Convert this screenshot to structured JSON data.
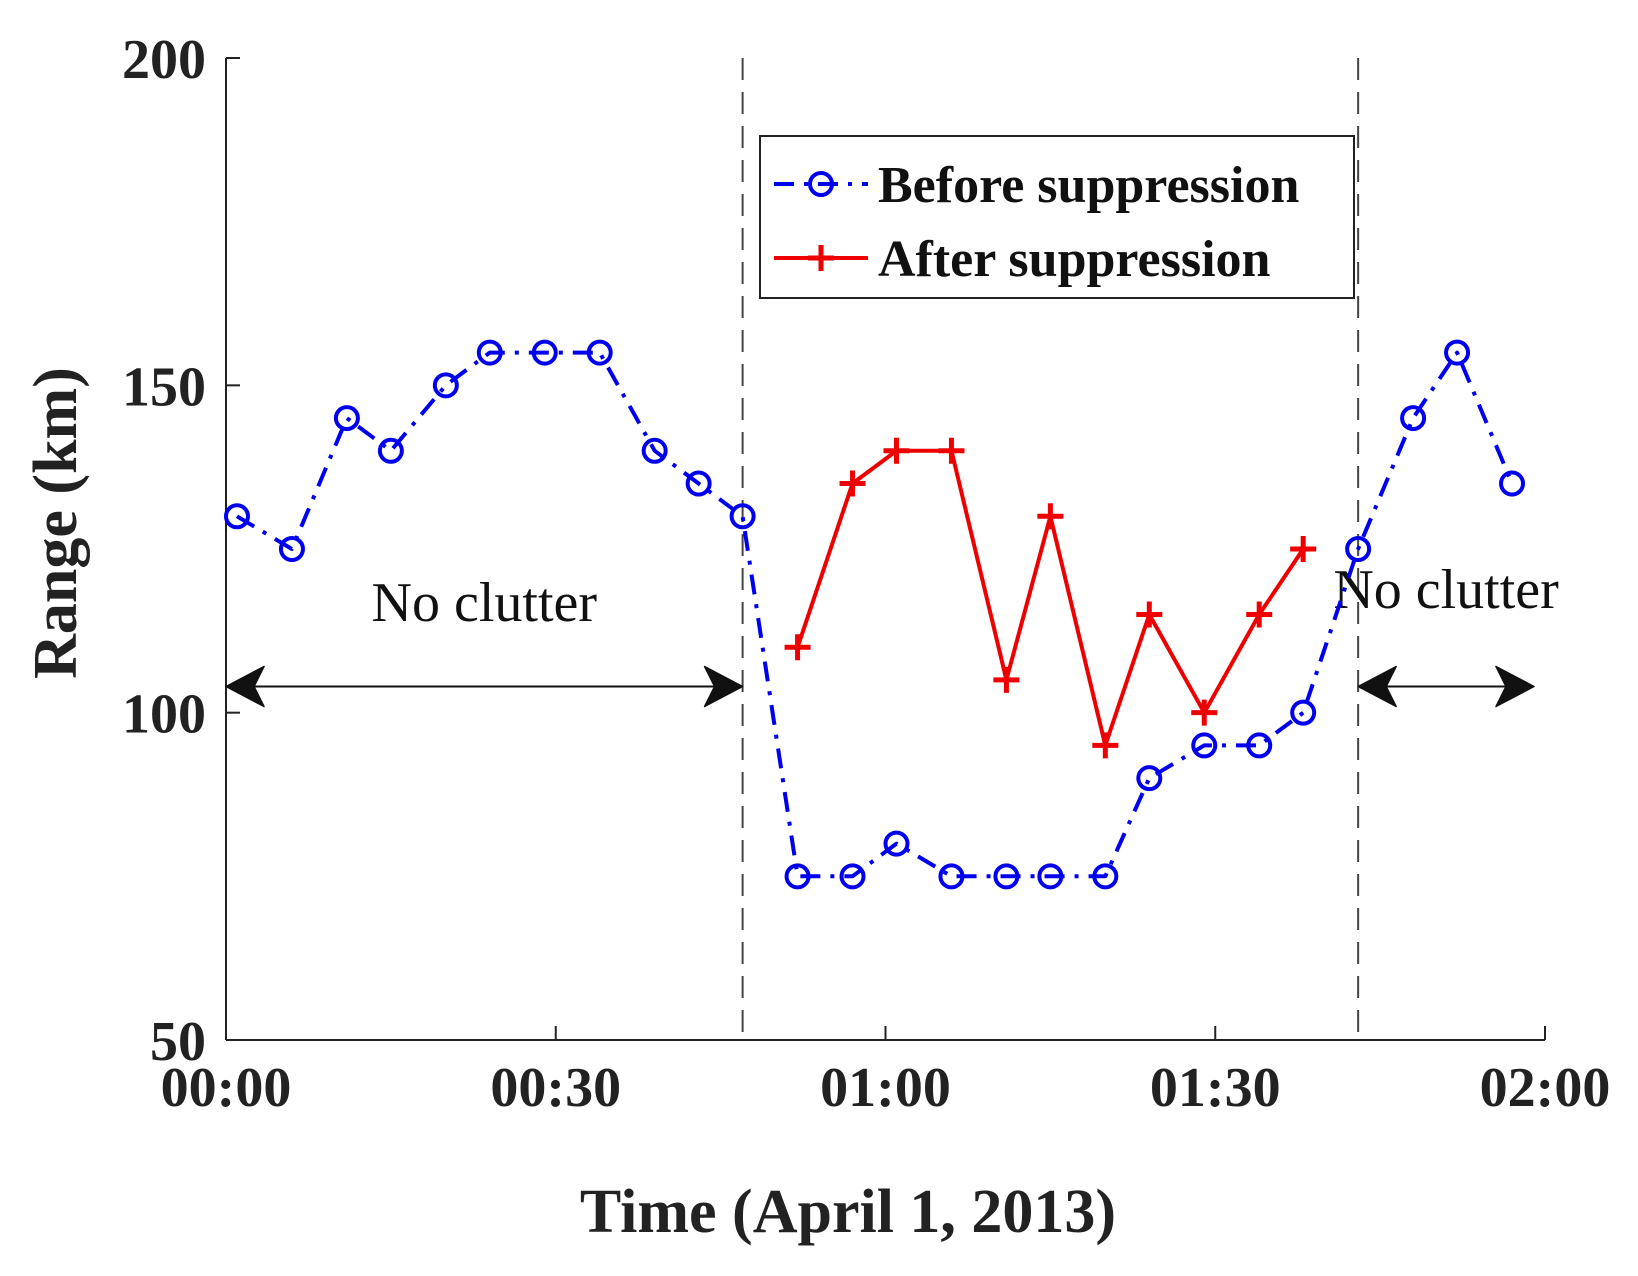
{
  "chart_data": {
    "type": "line",
    "title": "",
    "xlabel": "Time (April 1, 2013)",
    "ylabel": "Range (km)",
    "xlim": [
      "00:00",
      "02:00"
    ],
    "ylim": [
      50,
      200
    ],
    "x_ticks": [
      "00:00",
      "00:30",
      "01:00",
      "01:30",
      "02:00"
    ],
    "y_ticks": [
      "50",
      "100",
      "150",
      "200"
    ],
    "grid": false,
    "legend_position": "top-center",
    "series": [
      {
        "name": "Before suppression",
        "color": "#0000ee",
        "line_style": "dash-dot",
        "marker": "circle",
        "x": [
          "00:01",
          "00:06",
          "00:11",
          "00:15",
          "00:20",
          "00:24",
          "00:29",
          "00:34",
          "00:39",
          "00:43",
          "00:47",
          "00:52",
          "00:57",
          "01:01",
          "01:06",
          "01:11",
          "01:15",
          "01:20",
          "01:24",
          "01:29",
          "01:34",
          "01:38",
          "01:43",
          "01:48",
          "01:52",
          "01:57"
        ],
        "values": [
          130,
          125,
          145,
          140,
          150,
          155,
          155,
          155,
          140,
          135,
          130,
          75,
          75,
          80,
          75,
          75,
          75,
          75,
          90,
          95,
          95,
          100,
          125,
          145,
          155,
          135
        ]
      },
      {
        "name": "After suppression",
        "color": "#ee0000",
        "line_style": "solid",
        "marker": "plus",
        "x": [
          "00:52",
          "00:57",
          "01:01",
          "01:06",
          "01:11",
          "01:15",
          "01:20",
          "01:24",
          "01:29",
          "01:34",
          "01:38"
        ],
        "values": [
          110,
          135,
          140,
          140,
          105,
          130,
          95,
          115,
          100,
          115,
          125
        ]
      }
    ],
    "vertical_lines": [
      "00:47",
      "01:43"
    ],
    "annotations": [
      {
        "text": "No clutter",
        "arrow_from": "00:00",
        "arrow_to": "00:47",
        "arrow_y": 104,
        "text_y": 114
      },
      {
        "text": "No clutter",
        "arrow_from": "01:43",
        "arrow_to": "01:59",
        "arrow_y": 104,
        "text_y": 116
      }
    ]
  }
}
